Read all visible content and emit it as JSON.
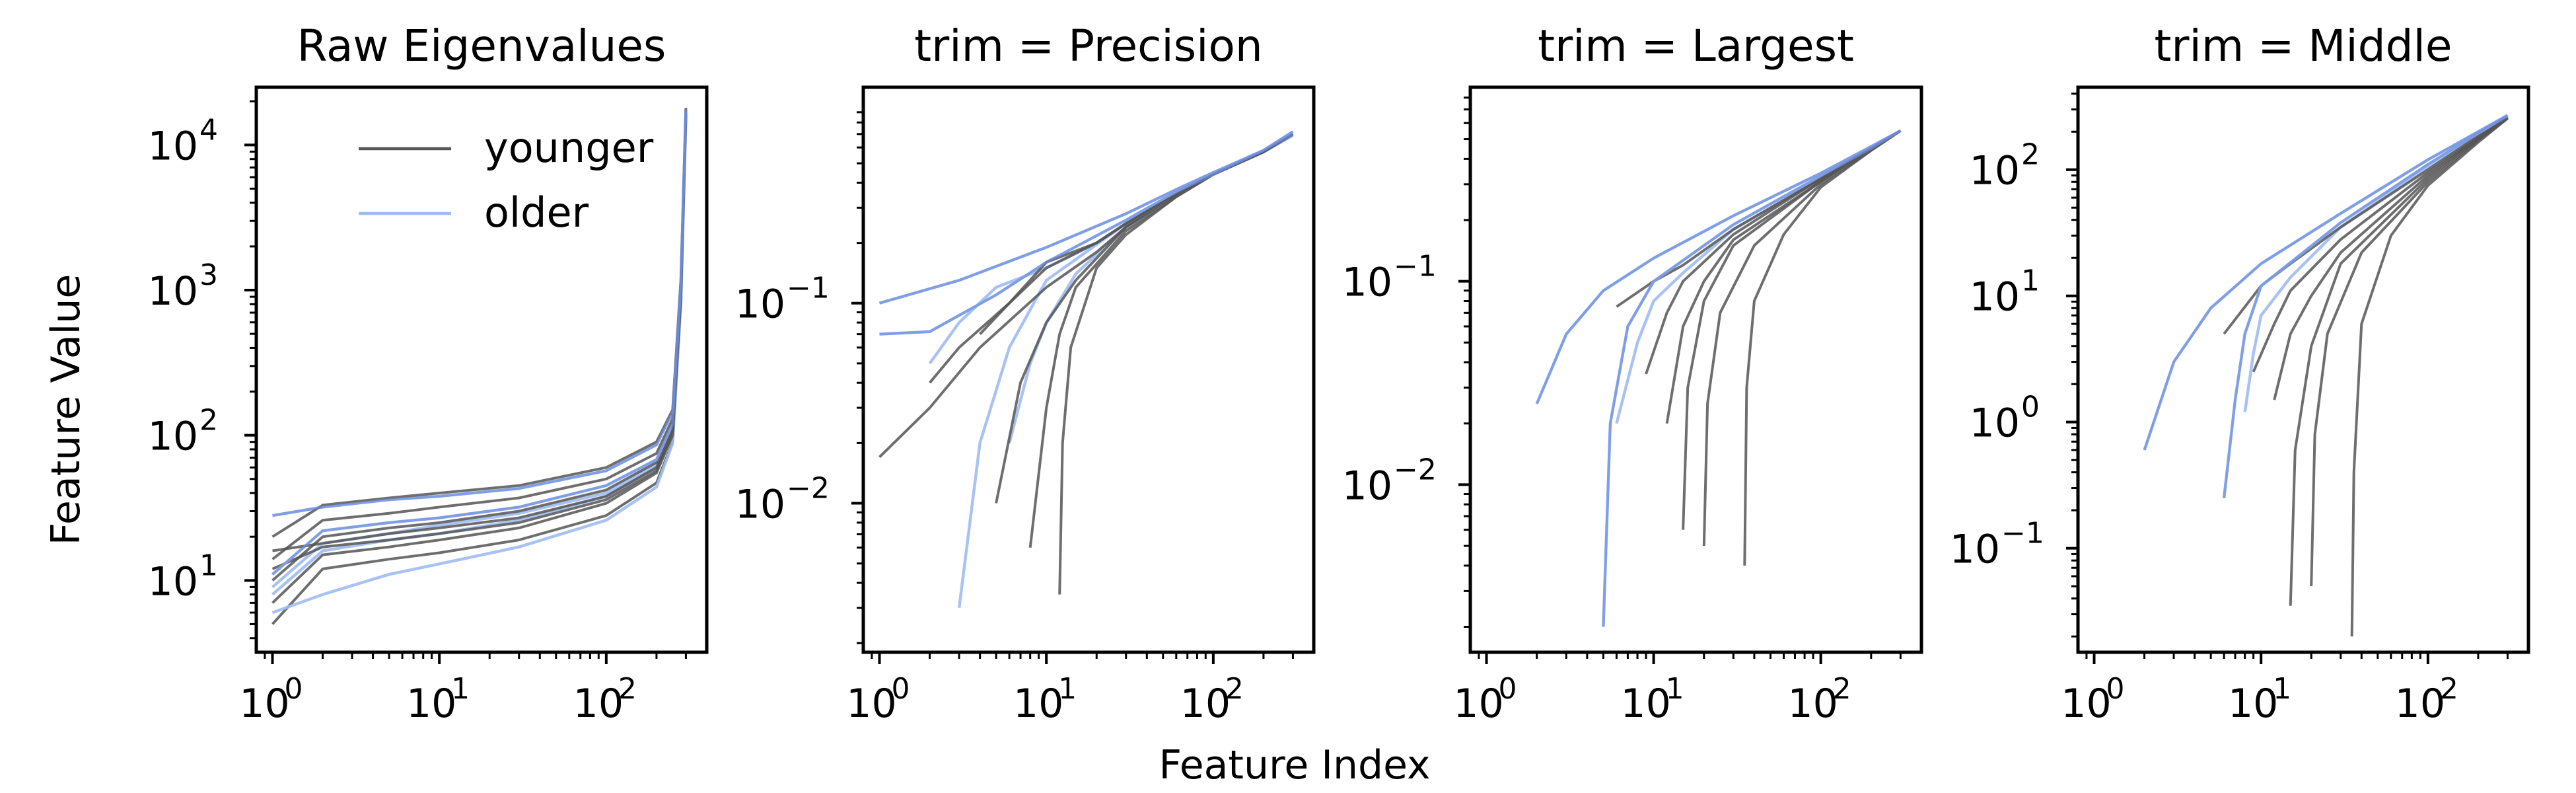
{
  "figure": {
    "xlabel": "Feature Index",
    "ylabel": "Feature Value",
    "legend": {
      "placement": "upper-center",
      "entries": [
        {
          "label": "younger",
          "color": "#555555"
        },
        {
          "label": "older",
          "color": "#9fbdf2"
        }
      ]
    },
    "colors": {
      "younger": "#555555",
      "older": "#9fbdf2",
      "older_dense": "#6f8fe0"
    }
  },
  "chart_data": [
    {
      "type": "line",
      "title": "Raw Eigenvalues",
      "xscale": "log",
      "yscale": "log",
      "xlim": [
        0.8,
        400
      ],
      "ylim": [
        3.2,
        25000
      ],
      "xticks": [
        {
          "v": 1,
          "base": "10",
          "exp": "0"
        },
        {
          "v": 10,
          "base": "10",
          "exp": "1"
        },
        {
          "v": 100,
          "base": "10",
          "exp": "2"
        }
      ],
      "yticks": [
        {
          "v": 10,
          "base": "10",
          "exp": "1"
        },
        {
          "v": 100,
          "base": "10",
          "exp": "2"
        },
        {
          "v": 1000,
          "base": "10",
          "exp": "3"
        },
        {
          "v": 10000,
          "base": "10",
          "exp": "4"
        }
      ],
      "series": [
        {
          "group": "younger",
          "x": [
            1,
            2,
            5,
            10,
            30,
            100,
            200,
            250,
            280,
            300
          ],
          "y": [
            20,
            33,
            37,
            40,
            45,
            60,
            90,
            150,
            1200,
            18000
          ]
        },
        {
          "group": "younger",
          "x": [
            1,
            2,
            5,
            10,
            30,
            100,
            200,
            250,
            280,
            300
          ],
          "y": [
            14,
            26,
            29,
            32,
            37,
            50,
            75,
            130,
            1100,
            17000
          ]
        },
        {
          "group": "younger",
          "x": [
            1,
            2,
            5,
            10,
            30,
            100,
            200,
            250,
            280,
            300
          ],
          "y": [
            10,
            20,
            23,
            25,
            30,
            42,
            65,
            115,
            1000,
            16500
          ]
        },
        {
          "group": "younger",
          "x": [
            1,
            2,
            5,
            10,
            30,
            100,
            200,
            250,
            280,
            300
          ],
          "y": [
            7,
            15,
            17,
            19,
            23,
            34,
            55,
            100,
            900,
            16000
          ]
        },
        {
          "group": "younger",
          "x": [
            1,
            2,
            5,
            10,
            30,
            100,
            200,
            250,
            280,
            300
          ],
          "y": [
            5,
            12,
            14,
            15.5,
            19,
            28,
            47,
            90,
            850,
            15500
          ]
        },
        {
          "group": "younger",
          "x": [
            1,
            2,
            5,
            10,
            30,
            100,
            200,
            250,
            280,
            300
          ],
          "y": [
            16,
            18,
            21,
            23,
            27,
            38,
            60,
            108,
            950,
            16200
          ]
        },
        {
          "group": "younger",
          "x": [
            1,
            2,
            5,
            10,
            30,
            100,
            200,
            250,
            280,
            300
          ],
          "y": [
            12,
            17,
            19,
            21,
            25,
            36,
            57,
            104,
            920,
            16100
          ]
        },
        {
          "group": "older",
          "x": [
            1,
            2,
            5,
            10,
            30,
            100,
            200,
            250,
            280,
            300
          ],
          "y": [
            28,
            32,
            36,
            38,
            43,
            57,
            86,
            145,
            1150,
            17500
          ]
        },
        {
          "group": "older",
          "x": [
            1,
            2,
            5,
            10,
            30,
            100,
            200,
            250,
            280,
            300
          ],
          "y": [
            11,
            22,
            25,
            27,
            32,
            45,
            68,
            120,
            1050,
            16800
          ]
        },
        {
          "group": "older",
          "x": [
            1,
            2,
            5,
            10,
            30,
            100,
            200,
            250,
            280,
            300
          ],
          "y": [
            8,
            16,
            19,
            21,
            26,
            38,
            60,
            108,
            960,
            16300
          ]
        },
        {
          "group": "older",
          "x": [
            1,
            2,
            5,
            10,
            30,
            100,
            200,
            250,
            280,
            300
          ],
          "y": [
            6,
            8,
            11,
            13,
            17,
            26,
            44,
            88,
            820,
            15400
          ]
        },
        {
          "group": "older",
          "x": [
            1,
            2,
            5,
            10,
            30,
            100,
            200,
            250,
            280,
            300
          ],
          "y": [
            9,
            18,
            21,
            24,
            29,
            40,
            63,
            112,
            980,
            16400
          ]
        }
      ]
    },
    {
      "type": "line",
      "title": "trim = Precision",
      "xscale": "log",
      "yscale": "log",
      "xlim": [
        0.8,
        400
      ],
      "ylim": [
        0.0018,
        1.2
      ],
      "xticks": [
        {
          "v": 1,
          "base": "10",
          "exp": "0"
        },
        {
          "v": 10,
          "base": "10",
          "exp": "1"
        },
        {
          "v": 100,
          "base": "10",
          "exp": "2"
        }
      ],
      "yticks": [
        {
          "v": 0.01,
          "base": "10",
          "exp": "−2"
        },
        {
          "v": 0.1,
          "base": "10",
          "exp": "−1"
        }
      ],
      "series": [
        {
          "group": "older",
          "x": [
            1,
            3,
            10,
            30,
            60,
            100,
            200,
            300
          ],
          "y": [
            0.1,
            0.13,
            0.19,
            0.28,
            0.37,
            0.45,
            0.58,
            0.72
          ]
        },
        {
          "group": "older",
          "x": [
            1,
            2,
            5,
            10,
            30,
            60,
            100,
            200,
            300
          ],
          "y": [
            0.07,
            0.072,
            0.11,
            0.16,
            0.26,
            0.36,
            0.44,
            0.58,
            0.7
          ]
        },
        {
          "group": "older",
          "x": [
            3,
            4,
            6,
            10,
            30,
            60,
            100,
            200,
            300
          ],
          "y": [
            0.003,
            0.02,
            0.06,
            0.13,
            0.25,
            0.35,
            0.44,
            0.57,
            0.7
          ]
        },
        {
          "group": "older",
          "x": [
            2,
            3,
            5,
            10,
            20,
            30,
            60,
            100,
            200,
            300
          ],
          "y": [
            0.05,
            0.08,
            0.12,
            0.15,
            0.2,
            0.25,
            0.35,
            0.44,
            0.57,
            0.69
          ]
        },
        {
          "group": "older",
          "x": [
            6,
            8,
            10,
            15,
            30,
            60,
            100,
            200,
            300
          ],
          "y": [
            0.02,
            0.05,
            0.08,
            0.14,
            0.24,
            0.35,
            0.44,
            0.57,
            0.69
          ]
        },
        {
          "group": "younger",
          "x": [
            1,
            2,
            4,
            10,
            20,
            30,
            60,
            100,
            200,
            300
          ],
          "y": [
            0.017,
            0.03,
            0.06,
            0.12,
            0.18,
            0.24,
            0.35,
            0.44,
            0.57,
            0.7
          ]
        },
        {
          "group": "younger",
          "x": [
            2,
            3,
            6,
            10,
            20,
            30,
            60,
            100,
            200,
            300
          ],
          "y": [
            0.04,
            0.06,
            0.1,
            0.16,
            0.2,
            0.25,
            0.35,
            0.44,
            0.57,
            0.7
          ]
        },
        {
          "group": "younger",
          "x": [
            5,
            7,
            10,
            15,
            30,
            60,
            100,
            200,
            300
          ],
          "y": [
            0.01,
            0.04,
            0.08,
            0.13,
            0.24,
            0.35,
            0.44,
            0.57,
            0.7
          ]
        },
        {
          "group": "younger",
          "x": [
            8,
            10,
            12,
            15,
            30,
            60,
            100,
            200,
            300
          ],
          "y": [
            0.006,
            0.03,
            0.07,
            0.12,
            0.23,
            0.34,
            0.44,
            0.57,
            0.7
          ]
        },
        {
          "group": "younger",
          "x": [
            12,
            12.5,
            14,
            20,
            30,
            60,
            100,
            200,
            300
          ],
          "y": [
            0.0035,
            0.02,
            0.06,
            0.15,
            0.22,
            0.34,
            0.44,
            0.57,
            0.7
          ]
        },
        {
          "group": "younger",
          "x": [
            4,
            6,
            10,
            20,
            30,
            60,
            100,
            200,
            300
          ],
          "y": [
            0.07,
            0.1,
            0.15,
            0.2,
            0.25,
            0.35,
            0.44,
            0.57,
            0.7
          ]
        }
      ]
    },
    {
      "type": "line",
      "title": "trim = Largest",
      "xscale": "log",
      "yscale": "log",
      "xlim": [
        0.8,
        400
      ],
      "ylim": [
        0.0015,
        0.9
      ],
      "xticks": [
        {
          "v": 1,
          "base": "10",
          "exp": "0"
        },
        {
          "v": 10,
          "base": "10",
          "exp": "1"
        },
        {
          "v": 100,
          "base": "10",
          "exp": "2"
        }
      ],
      "yticks": [
        {
          "v": 0.01,
          "base": "10",
          "exp": "−2"
        },
        {
          "v": 0.1,
          "base": "10",
          "exp": "−1"
        }
      ],
      "series": [
        {
          "group": "older",
          "x": [
            2,
            3,
            5,
            10,
            30,
            100,
            200,
            300
          ],
          "y": [
            0.025,
            0.055,
            0.09,
            0.13,
            0.21,
            0.34,
            0.46,
            0.55
          ]
        },
        {
          "group": "older",
          "x": [
            5,
            5.5,
            7,
            10,
            30,
            100,
            200,
            300
          ],
          "y": [
            0.002,
            0.02,
            0.06,
            0.1,
            0.19,
            0.33,
            0.45,
            0.55
          ]
        },
        {
          "group": "older",
          "x": [
            6,
            8,
            10,
            15,
            30,
            100,
            200,
            300
          ],
          "y": [
            0.02,
            0.05,
            0.08,
            0.11,
            0.18,
            0.32,
            0.45,
            0.55
          ]
        },
        {
          "group": "younger",
          "x": [
            6,
            10,
            15,
            30,
            100,
            200,
            300
          ],
          "y": [
            0.075,
            0.1,
            0.12,
            0.18,
            0.32,
            0.45,
            0.55
          ]
        },
        {
          "group": "younger",
          "x": [
            9,
            12,
            15,
            30,
            100,
            200,
            300
          ],
          "y": [
            0.035,
            0.07,
            0.1,
            0.17,
            0.32,
            0.45,
            0.55
          ]
        },
        {
          "group": "younger",
          "x": [
            15,
            16,
            20,
            30,
            100,
            200,
            300
          ],
          "y": [
            0.006,
            0.03,
            0.08,
            0.15,
            0.31,
            0.45,
            0.55
          ]
        },
        {
          "group": "younger",
          "x": [
            20,
            21,
            25,
            40,
            100,
            200,
            300
          ],
          "y": [
            0.005,
            0.025,
            0.07,
            0.15,
            0.3,
            0.44,
            0.55
          ]
        },
        {
          "group": "younger",
          "x": [
            35,
            36,
            40,
            60,
            100,
            200,
            300
          ],
          "y": [
            0.004,
            0.03,
            0.08,
            0.17,
            0.29,
            0.44,
            0.55
          ]
        },
        {
          "group": "younger",
          "x": [
            12,
            15,
            20,
            30,
            100,
            200,
            300
          ],
          "y": [
            0.02,
            0.06,
            0.1,
            0.16,
            0.31,
            0.45,
            0.55
          ]
        }
      ]
    },
    {
      "type": "line",
      "title": "trim = Middle",
      "xscale": "log",
      "yscale": "log",
      "xlim": [
        0.8,
        400
      ],
      "ylim": [
        0.015,
        450
      ],
      "xticks": [
        {
          "v": 1,
          "base": "10",
          "exp": "0"
        },
        {
          "v": 10,
          "base": "10",
          "exp": "1"
        },
        {
          "v": 100,
          "base": "10",
          "exp": "2"
        }
      ],
      "yticks": [
        {
          "v": 0.1,
          "base": "10",
          "exp": "−1"
        },
        {
          "v": 1,
          "base": "10",
          "exp": "0"
        },
        {
          "v": 10,
          "base": "10",
          "exp": "1"
        },
        {
          "v": 100,
          "base": "10",
          "exp": "2"
        }
      ],
      "series": [
        {
          "group": "older",
          "x": [
            2,
            3,
            5,
            10,
            30,
            100,
            200,
            300
          ],
          "y": [
            0.6,
            3,
            8,
            18,
            45,
            120,
            200,
            270
          ]
        },
        {
          "group": "older",
          "x": [
            6,
            7,
            8,
            10,
            30,
            100,
            200,
            300
          ],
          "y": [
            0.25,
            1.5,
            5,
            12,
            38,
            110,
            195,
            265
          ]
        },
        {
          "group": "older",
          "x": [
            8,
            9,
            10,
            15,
            30,
            100,
            200,
            300
          ],
          "y": [
            1.2,
            3.5,
            7,
            14,
            35,
            105,
            190,
            265
          ]
        },
        {
          "group": "younger",
          "x": [
            6,
            10,
            15,
            30,
            100,
            200,
            300
          ],
          "y": [
            5,
            12,
            18,
            35,
            100,
            185,
            260
          ]
        },
        {
          "group": "younger",
          "x": [
            9,
            12,
            15,
            30,
            100,
            200,
            300
          ],
          "y": [
            2.5,
            6,
            11,
            28,
            95,
            180,
            260
          ]
        },
        {
          "group": "younger",
          "x": [
            15,
            16,
            20,
            30,
            100,
            200,
            300
          ],
          "y": [
            0.035,
            0.6,
            4,
            18,
            85,
            175,
            258
          ]
        },
        {
          "group": "younger",
          "x": [
            20,
            21,
            25,
            40,
            100,
            200,
            300
          ],
          "y": [
            0.05,
            0.8,
            5,
            22,
            80,
            170,
            255
          ]
        },
        {
          "group": "younger",
          "x": [
            35,
            36,
            40,
            60,
            100,
            200,
            300
          ],
          "y": [
            0.02,
            0.4,
            6,
            30,
            75,
            165,
            255
          ]
        },
        {
          "group": "younger",
          "x": [
            12,
            15,
            20,
            30,
            100,
            200,
            300
          ],
          "y": [
            1.5,
            5,
            10,
            22,
            90,
            178,
            258
          ]
        }
      ]
    }
  ]
}
